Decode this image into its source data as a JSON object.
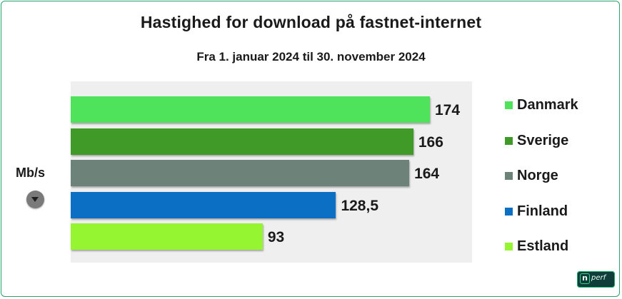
{
  "chart_data": {
    "type": "bar",
    "orientation": "horizontal",
    "title": "Hastighed for download på fastnet-internet",
    "subtitle": "Fra 1. januar 2024 til 30. november 2024",
    "unit_label": "Mb/s",
    "categories": [
      "Danmark",
      "Sverige",
      "Norge",
      "Finland",
      "Estland"
    ],
    "values": [
      174,
      166,
      164,
      128.5,
      93
    ],
    "value_labels": [
      "174",
      "166",
      "164",
      "128,5",
      "93"
    ],
    "colors": [
      "#4ee35a",
      "#3f9a28",
      "#6d8279",
      "#0b6fc4",
      "#96f531"
    ],
    "xlim": [
      0,
      190
    ],
    "grid": false,
    "legend_position": "right"
  },
  "logo": {
    "n": "n",
    "text": "perf"
  }
}
